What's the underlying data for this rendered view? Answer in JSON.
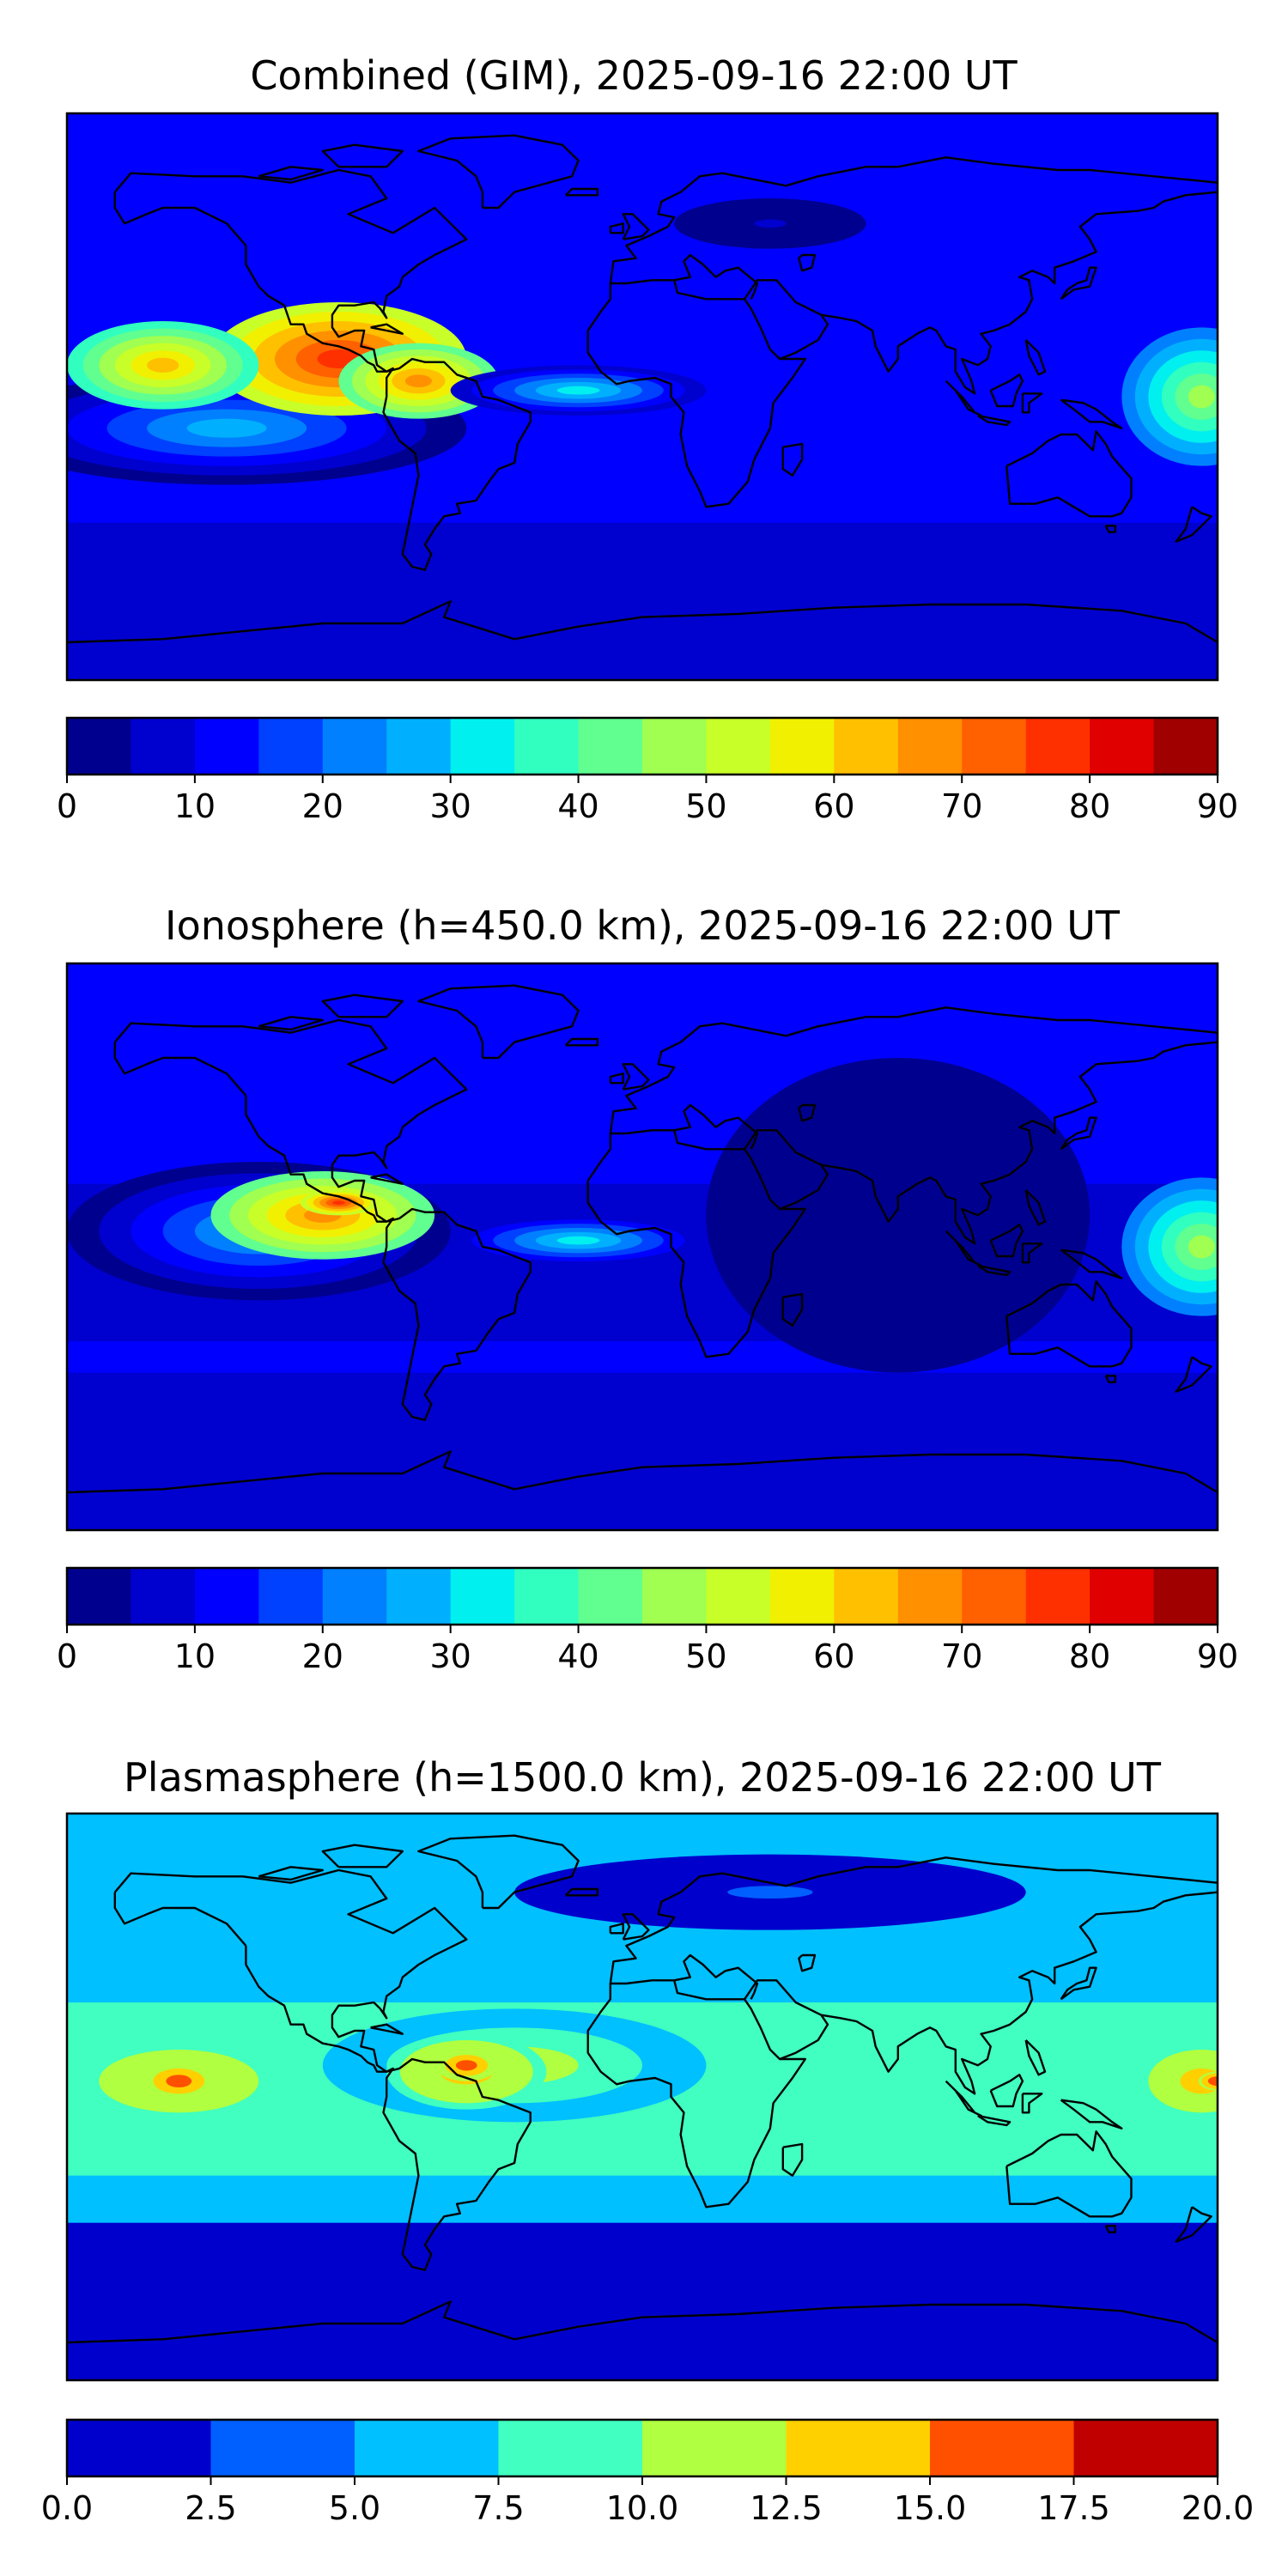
{
  "figure": {
    "panels": [
      {
        "title": "Combined (GIM), 2025-09-16 22:00 UT",
        "colorbar": {
          "min": 0,
          "max": 90,
          "step": 5,
          "colors": [
            "#00008f",
            "#0000cf",
            "#0000ff",
            "#0040ff",
            "#0080ff",
            "#00b0ff",
            "#00f0f0",
            "#30ffc0",
            "#60ff90",
            "#a0ff50",
            "#c8ff28",
            "#f0f000",
            "#ffc000",
            "#ff9000",
            "#ff6000",
            "#ff3000",
            "#e00000",
            "#a00000"
          ],
          "ticks": [
            "0",
            "10",
            "20",
            "30",
            "40",
            "50",
            "60",
            "70",
            "80",
            "90"
          ]
        },
        "blobs": [
          {
            "lon": -130,
            "lat": -10,
            "rx": 75,
            "ry": 18,
            "level": 28
          },
          {
            "lon": -95,
            "lat": 12,
            "rx": 40,
            "ry": 18,
            "level": 76
          },
          {
            "lon": -150,
            "lat": 10,
            "rx": 30,
            "ry": 14,
            "level": 62
          },
          {
            "lon": -70,
            "lat": 5,
            "rx": 25,
            "ry": 12,
            "level": 65
          },
          {
            "lon": -20,
            "lat": 2,
            "rx": 40,
            "ry": 8,
            "level": 33
          },
          {
            "lon": 175,
            "lat": 0,
            "rx": 25,
            "ry": 22,
            "level": 48
          },
          {
            "lon": 40,
            "lat": 55,
            "rx": 30,
            "ry": 8,
            "level": 5
          }
        ]
      },
      {
        "title": "Ionosphere  (h=450.0 km), 2025-09-16 22:00 UT",
        "colorbar": {
          "min": 0,
          "max": 90,
          "step": 5,
          "colors": [
            "#00008f",
            "#0000cf",
            "#0000ff",
            "#0040ff",
            "#0080ff",
            "#00b0ff",
            "#00f0f0",
            "#30ffc0",
            "#60ff90",
            "#a0ff50",
            "#c8ff28",
            "#f0f000",
            "#ffc000",
            "#ff9000",
            "#ff6000",
            "#ff3000",
            "#e00000",
            "#a00000"
          ],
          "ticks": [
            "0",
            "10",
            "20",
            "30",
            "40",
            "50",
            "60",
            "70",
            "80",
            "90"
          ]
        },
        "blobs": [
          {
            "lon": -120,
            "lat": 5,
            "rx": 60,
            "ry": 22,
            "level": 28
          },
          {
            "lon": -100,
            "lat": 10,
            "rx": 35,
            "ry": 14,
            "level": 66
          },
          {
            "lon": -95,
            "lat": 14,
            "rx": 12,
            "ry": 4,
            "level": 78
          },
          {
            "lon": -20,
            "lat": 2,
            "rx": 40,
            "ry": 8,
            "level": 30
          },
          {
            "lon": 175,
            "lat": 0,
            "rx": 25,
            "ry": 22,
            "level": 45
          },
          {
            "lon": 80,
            "lat": 10,
            "rx": 60,
            "ry": 50,
            "level": 3
          }
        ]
      },
      {
        "title": "Plasmasphere (h=1500.0 km), 2025-09-16 22:00 UT",
        "colorbar": {
          "min": 0,
          "max": 20,
          "step": 2.5,
          "colors": [
            "#0000cd",
            "#0060ff",
            "#00c0ff",
            "#40ffc0",
            "#b0ff40",
            "#ffd000",
            "#ff5000",
            "#c00000"
          ],
          "ticks": [
            "0.0",
            "2.5",
            "5.0",
            "7.5",
            "10.0",
            "12.5",
            "15.0",
            "17.5",
            "20.0"
          ]
        },
        "blobs": [
          {
            "lon": -40,
            "lat": 10,
            "rx": 60,
            "ry": 18,
            "level": 11
          },
          {
            "lon": -145,
            "lat": 5,
            "rx": 30,
            "ry": 12,
            "level": 14
          },
          {
            "lon": -145,
            "lat": 5,
            "rx": 12,
            "ry": 6,
            "level": 16
          },
          {
            "lon": -55,
            "lat": 8,
            "rx": 25,
            "ry": 12,
            "level": 14
          },
          {
            "lon": -55,
            "lat": 10,
            "rx": 10,
            "ry": 5,
            "level": 16
          },
          {
            "lon": 175,
            "lat": 5,
            "rx": 20,
            "ry": 12,
            "level": 14
          },
          {
            "lon": 180,
            "lat": 5,
            "rx": 6,
            "ry": 3,
            "level": 17
          },
          {
            "lon": 40,
            "lat": 65,
            "rx": 80,
            "ry": 12,
            "level": 3
          }
        ]
      }
    ]
  }
}
